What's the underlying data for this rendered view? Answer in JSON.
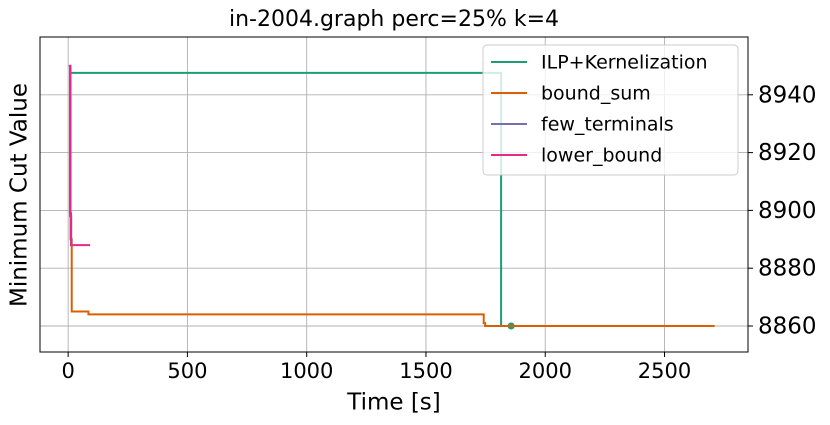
{
  "chart_data": {
    "type": "line",
    "title": "in-2004.graph perc=25% k=4",
    "xlabel": "Time [s]",
    "ylabel": "Minimum Cut Value",
    "xlim": [
      -118,
      2850
    ],
    "ylim": [
      8851,
      8960
    ],
    "xticks": [
      0,
      500,
      1000,
      1500,
      2000,
      2500
    ],
    "yticks": [
      8860,
      8880,
      8900,
      8920,
      8940
    ],
    "grid": true,
    "y_axis_side": "right",
    "legend": "upper right",
    "series": [
      {
        "name": "ILP+Kernelization",
        "color": "#1b9e77",
        "end_marker": true,
        "x": [
          5,
          1815,
          1815,
          1857
        ],
        "values": [
          8947.6,
          8947.6,
          8860,
          8860
        ]
      },
      {
        "name": "bound_sum",
        "color": "#d95f02",
        "x": [
          5,
          10,
          10,
          15,
          15,
          85,
          85,
          1742,
          1742,
          1748,
          1748,
          2710
        ],
        "values": [
          8950,
          8950,
          8890,
          8890,
          8865,
          8865,
          8864,
          8864,
          8861,
          8861,
          8860,
          8860
        ]
      },
      {
        "name": "few_terminals",
        "color": "#7570b3",
        "x": [
          3,
          8,
          8,
          13,
          13,
          20
        ],
        "values": [
          8950,
          8950,
          8898,
          8898,
          8888,
          8888
        ]
      },
      {
        "name": "lower_bound",
        "color": "#e7298a",
        "x": [
          3,
          8,
          8,
          12,
          12,
          92
        ],
        "values": [
          8950,
          8950,
          8899,
          8899,
          8888,
          8888
        ]
      }
    ]
  }
}
